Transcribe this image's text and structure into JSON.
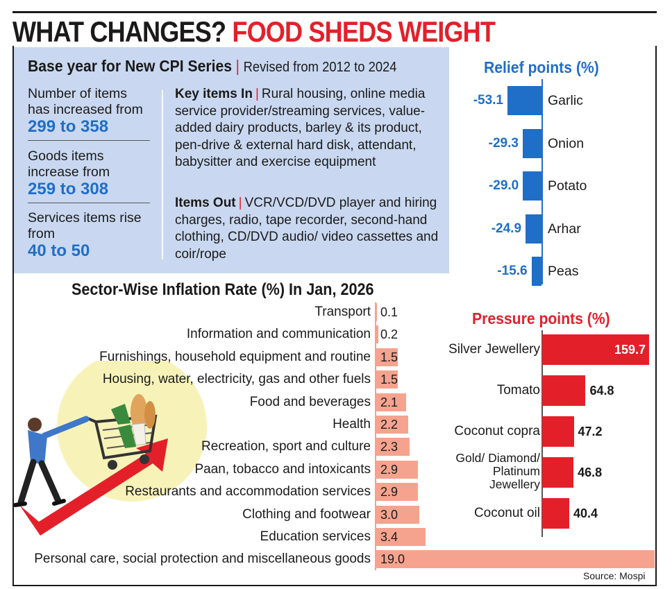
{
  "headline": {
    "part1": "WHAT CHANGES?",
    "part2": "FOOD SHEDS WEIGHT"
  },
  "cpi": {
    "title": "Base year for New CPI Series",
    "subtitle": "Revised from 2012 to 2024",
    "stats": [
      {
        "text": "Number of items has increased from",
        "value": "299 to 358"
      },
      {
        "text": "Goods items increase from",
        "value": "259 to 308"
      },
      {
        "text": "Services items rise from",
        "value": "40 to 50"
      }
    ],
    "items_in_label": "Key items In",
    "items_in_text": "Rural housing, online media service provider/streaming services, value-added dairy products, barley & its product, pen-drive & external hard disk, attendant, babysitter and exercise equipment",
    "items_out_label": "Items Out",
    "items_out_text": "VCR/VCD/DVD player and hiring charges, radio, tape recorder, second-hand clothing, CD/DVD audio/ video cassettes and coir/rope"
  },
  "colors": {
    "blue": "#1f6ec8",
    "red": "#e3202a",
    "salmon": "#f5a38e",
    "box": "#c9d8f0"
  },
  "chart_data": [
    {
      "type": "bar",
      "orientation": "horizontal",
      "title": "Sector-Wise Inflation Rate (%) In Jan, 2026",
      "categories": [
        "Transport",
        "Information and communication",
        "Furnishings, household equipment and routine",
        "Housing, water, electricity, gas and other fuels",
        "Food and beverages",
        "Health",
        "Recreation, sport and culture",
        "Paan, tobacco and intoxicants",
        "Restaurants and accommodation services",
        "Clothing and footwear",
        "Education services",
        "Personal care, social protection and miscellaneous goods"
      ],
      "values": [
        0.1,
        0.2,
        1.5,
        1.5,
        2.1,
        2.2,
        2.3,
        2.9,
        2.9,
        3.0,
        3.4,
        19.0
      ],
      "labels": [
        "0.1",
        "0.2",
        "1.5",
        "1.5",
        "2.1",
        "2.2",
        "2.3",
        "2.9",
        "2.9",
        "3.0",
        "3.4",
        "19.0"
      ]
    },
    {
      "type": "bar",
      "orientation": "horizontal",
      "title": "Relief points (%)",
      "categories": [
        "Garlic",
        "Onion",
        "Potato",
        "Arhar",
        "Peas"
      ],
      "values": [
        -53.1,
        -29.3,
        -29.0,
        -24.9,
        -15.6
      ],
      "labels": [
        "-53.1",
        "-29.3",
        "-29.0",
        "-24.9",
        "-15.6"
      ]
    },
    {
      "type": "bar",
      "orientation": "horizontal",
      "title": "Pressure points (%)",
      "categories": [
        "Silver Jewellery",
        "Tomato",
        "Coconut copra",
        "Gold/ Diamond/ Platinum Jewellery",
        "Coconut oil"
      ],
      "display_lines": [
        [
          "Silver Jewellery"
        ],
        [
          "Tomato"
        ],
        [
          "Coconut copra"
        ],
        [
          "Gold/ Diamond/",
          "Platinum",
          "Jewellery"
        ],
        [
          "Coconut oil"
        ]
      ],
      "values": [
        159.7,
        64.8,
        47.2,
        46.8,
        40.4
      ],
      "labels": [
        "159.7",
        "64.8",
        "47.2",
        "46.8",
        "40.4"
      ]
    }
  ],
  "source": "Source: Mospi"
}
